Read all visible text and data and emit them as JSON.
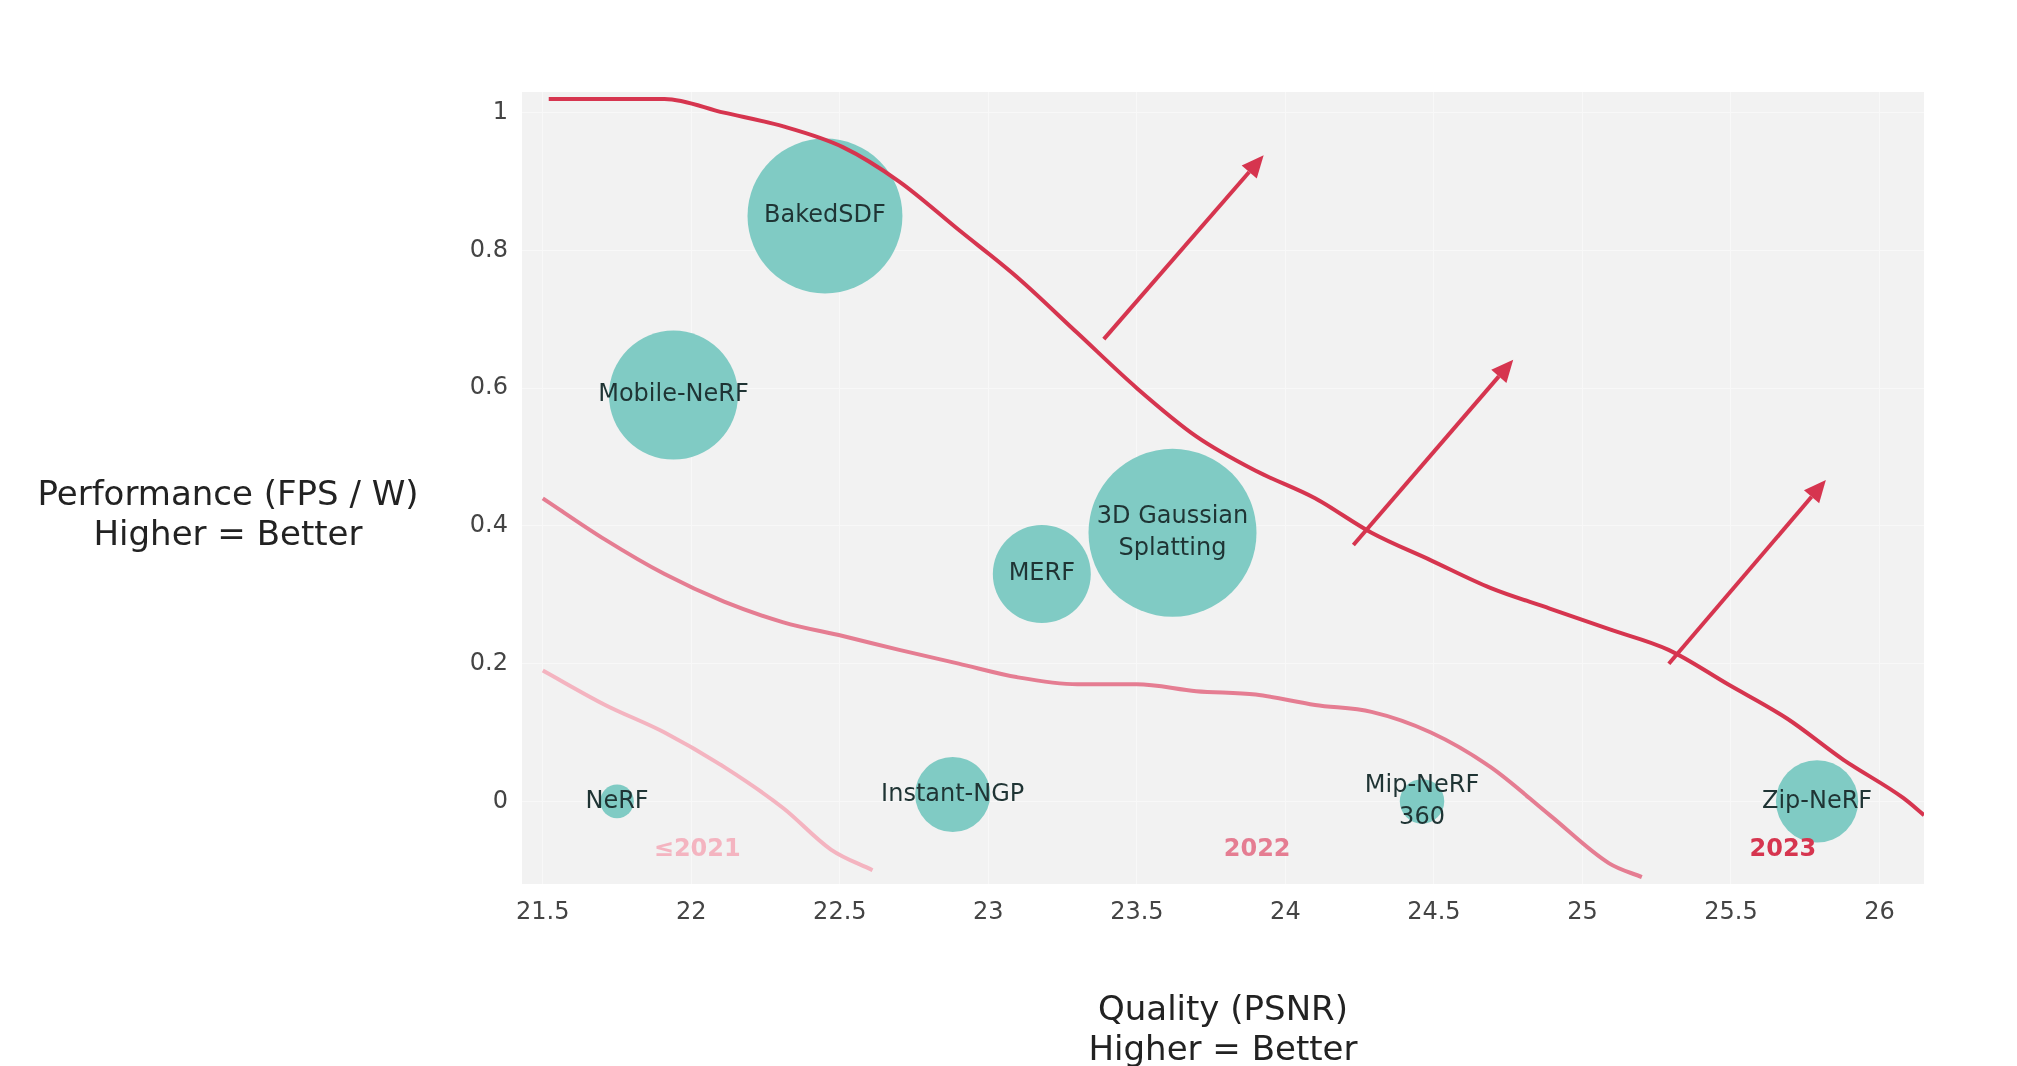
{
  "chart_data": {
    "type": "bubble",
    "xlabel": "Quality (PSNR)\nHigher = Better",
    "ylabel": "Performance (FPS / W)\nHigher = Better",
    "xlim": [
      21.43,
      26.15
    ],
    "ylim": [
      -0.12,
      1.03
    ],
    "xticks": [
      21.5,
      22,
      22.5,
      23,
      23.5,
      24,
      24.5,
      25,
      25.5,
      26
    ],
    "yticks": [
      0,
      0.2,
      0.4,
      0.6,
      0.8,
      1
    ],
    "grid": true,
    "legend": false,
    "series": [
      {
        "type": "line",
        "name": "≤2021",
        "color": "#f4b4c0",
        "x": [
          21.5,
          21.71,
          21.91,
          22.11,
          22.31,
          22.47,
          22.61
        ],
        "values": [
          0.19,
          0.14,
          0.1,
          0.05,
          -0.01,
          -0.07,
          -0.1
        ]
      },
      {
        "type": "line",
        "name": "2022",
        "color": "#e57d92",
        "x": [
          21.5,
          21.71,
          21.91,
          22.11,
          22.31,
          22.51,
          22.7,
          22.9,
          23.1,
          23.3,
          23.5,
          23.7,
          23.9,
          24.1,
          24.29,
          24.49,
          24.69,
          24.89,
          25.09,
          25.2
        ],
        "values": [
          0.44,
          0.38,
          0.33,
          0.29,
          0.26,
          0.24,
          0.22,
          0.2,
          0.18,
          0.17,
          0.17,
          0.16,
          0.155,
          0.14,
          0.13,
          0.1,
          0.05,
          -0.02,
          -0.09,
          -0.11
        ]
      },
      {
        "type": "line",
        "name": "2023",
        "color": "#d6354f",
        "x": [
          21.52,
          21.71,
          21.91,
          22.11,
          22.31,
          22.51,
          22.7,
          22.9,
          23.1,
          23.3,
          23.5,
          23.7,
          23.9,
          24.1,
          24.29,
          24.49,
          24.69,
          24.89,
          25.09,
          25.29,
          25.49,
          25.69,
          25.88,
          26.08,
          26.15
        ],
        "values": [
          1.02,
          1.02,
          1.02,
          1.0,
          0.98,
          0.95,
          0.9,
          0.83,
          0.76,
          0.68,
          0.6,
          0.53,
          0.48,
          0.44,
          0.39,
          0.35,
          0.31,
          0.28,
          0.25,
          0.22,
          0.17,
          0.12,
          0.06,
          0.005,
          -0.02
        ]
      },
      {
        "name": "NeRF",
        "color": "#80cbc4",
        "x": [
          21.75
        ],
        "values": [
          0
        ],
        "sizes": [
          0.04
        ]
      },
      {
        "name": "BakedSDF",
        "color": "#80cbc4",
        "x": [
          22.45
        ],
        "values": [
          0.85
        ],
        "sizes": [
          0.85
        ]
      },
      {
        "name": "Mobile-NeRF",
        "color": "#80cbc4",
        "x": [
          21.94
        ],
        "values": [
          0.59
        ],
        "sizes": [
          0.59
        ]
      },
      {
        "name": "3D Gaussian Splatting",
        "color": "#80cbc4",
        "x": [
          23.62
        ],
        "values": [
          0.39
        ],
        "sizes": [
          1
        ]
      },
      {
        "name": "MERF",
        "color": "#80cbc4",
        "x": [
          23.18
        ],
        "values": [
          0.33
        ],
        "sizes": [
          0.34
        ]
      },
      {
        "name": "Instant-NGP",
        "color": "#80cbc4",
        "x": [
          22.88
        ],
        "values": [
          0.01
        ],
        "sizes": [
          0.2
        ]
      },
      {
        "name": "Mip-NeRF 360",
        "color": "#80cbc4",
        "x": [
          24.46
        ],
        "values": [
          0
        ],
        "sizes": [
          0.07
        ]
      },
      {
        "name": "Zip-NeRF",
        "color": "#80cbc4",
        "x": [
          25.79
        ],
        "values": [
          0
        ],
        "sizes": [
          0.24
        ]
      }
    ]
  }
}
